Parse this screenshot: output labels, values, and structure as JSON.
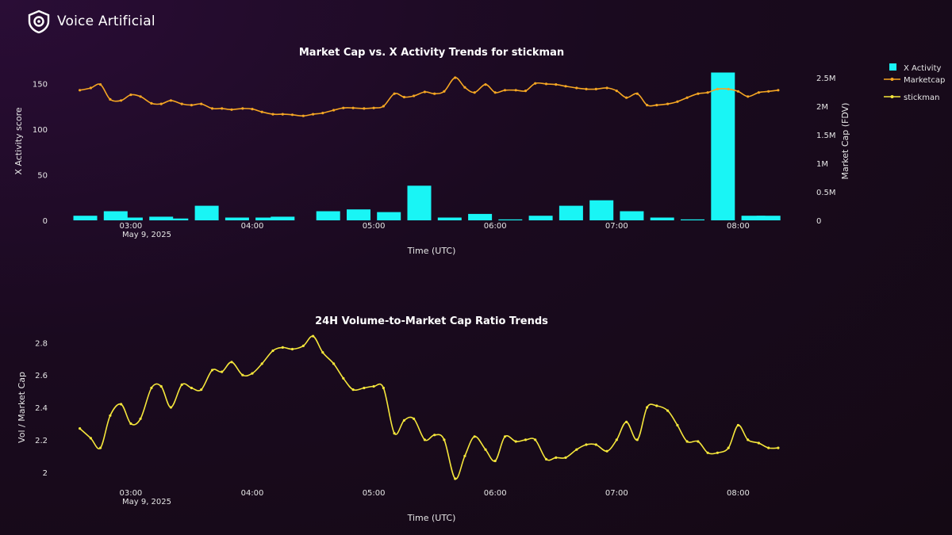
{
  "brand": {
    "name": "Voice Artificial",
    "logo_icon": "voice-artificial-logo-icon"
  },
  "colors": {
    "bar": "#19f5f5",
    "marketcap": "#f5a623",
    "ratio": "#f5e63b",
    "text": "#ffffff"
  },
  "chart_data": [
    {
      "type": "bar+line",
      "title": "Market Cap vs. X Activity Trends for stickman",
      "xlabel": "Time (UTC)",
      "ylabel_left": "X Activity score",
      "ylabel_right": "Market Cap (FDV)",
      "x_range_hours": [
        2.55,
        8.35
      ],
      "ylim_left": [
        0,
        172
      ],
      "ylim_right": [
        0,
        2.75
      ],
      "x_ticks": [
        "03:00",
        "04:00",
        "05:00",
        "06:00",
        "07:00",
        "08:00"
      ],
      "x_tick_sub": "May 9, 2025",
      "y_left_ticks": [
        "0",
        "50",
        "100",
        "150"
      ],
      "y_right_ticks": [
        "0",
        "0.5M",
        "1M",
        "1.5M",
        "2M",
        "2.5M"
      ],
      "legend": [
        "X Activity",
        "Marketcap",
        "stickman"
      ],
      "legend_position": "top-right",
      "bars": {
        "name": "X Activity",
        "x": [
          2.625,
          2.875,
          3.0,
          3.25,
          3.375,
          3.625,
          3.875,
          4.125,
          4.25,
          4.625,
          4.875,
          5.125,
          5.375,
          5.625,
          5.875,
          6.125,
          6.375,
          6.625,
          6.875,
          7.125,
          7.375,
          7.625,
          7.875,
          8.125,
          8.25
        ],
        "y": [
          5,
          10,
          3,
          4,
          2,
          16,
          3,
          3,
          4,
          10,
          12,
          9,
          38,
          3,
          7,
          1,
          5,
          16,
          22,
          10,
          3,
          1,
          162,
          5,
          5
        ]
      },
      "marketcap": {
        "name": "Marketcap",
        "x": [
          2.58,
          2.67,
          2.75,
          2.83,
          2.92,
          3.0,
          3.08,
          3.17,
          3.25,
          3.33,
          3.42,
          3.5,
          3.58,
          3.67,
          3.75,
          3.83,
          3.92,
          4.0,
          4.08,
          4.17,
          4.25,
          4.33,
          4.42,
          4.5,
          4.58,
          4.67,
          4.75,
          4.83,
          4.92,
          5.0,
          5.08,
          5.17,
          5.25,
          5.33,
          5.42,
          5.5,
          5.58,
          5.67,
          5.75,
          5.83,
          5.92,
          6.0,
          6.08,
          6.17,
          6.25,
          6.33,
          6.42,
          6.5,
          6.58,
          6.67,
          6.75,
          6.83,
          6.92,
          7.0,
          7.08,
          7.17,
          7.25,
          7.33,
          7.42,
          7.5,
          7.58,
          7.67,
          7.75,
          7.83,
          7.92,
          8.0,
          8.08,
          8.17,
          8.25,
          8.33
        ],
        "y": [
          2.28,
          2.32,
          2.38,
          2.12,
          2.1,
          2.2,
          2.17,
          2.05,
          2.04,
          2.1,
          2.04,
          2.02,
          2.04,
          1.96,
          1.96,
          1.94,
          1.96,
          1.95,
          1.9,
          1.86,
          1.86,
          1.85,
          1.83,
          1.86,
          1.88,
          1.93,
          1.97,
          1.97,
          1.96,
          1.97,
          2.0,
          2.22,
          2.16,
          2.18,
          2.25,
          2.22,
          2.26,
          2.5,
          2.33,
          2.24,
          2.38,
          2.24,
          2.28,
          2.28,
          2.27,
          2.4,
          2.39,
          2.38,
          2.35,
          2.32,
          2.3,
          2.3,
          2.32,
          2.27,
          2.15,
          2.22,
          2.02,
          2.02,
          2.04,
          2.08,
          2.15,
          2.22,
          2.24,
          2.3,
          2.3,
          2.26,
          2.17,
          2.24,
          2.26,
          2.28
        ]
      }
    },
    {
      "type": "line",
      "title": "24H Volume-to-Market Cap Ratio Trends",
      "xlabel": "Time (UTC)",
      "ylabel": "Vol / Market Cap",
      "x_range_hours": [
        2.55,
        8.35
      ],
      "ylim": [
        1.95,
        2.87
      ],
      "x_ticks": [
        "03:00",
        "04:00",
        "05:00",
        "06:00",
        "07:00",
        "08:00"
      ],
      "x_tick_sub": "May 9, 2025",
      "y_ticks": [
        "2",
        "2.2",
        "2.4",
        "2.6",
        "2.8"
      ],
      "series": [
        {
          "name": "stickman",
          "x": [
            2.58,
            2.67,
            2.75,
            2.83,
            2.92,
            3.0,
            3.08,
            3.17,
            3.25,
            3.33,
            3.42,
            3.5,
            3.58,
            3.67,
            3.75,
            3.83,
            3.92,
            4.0,
            4.08,
            4.17,
            4.25,
            4.33,
            4.42,
            4.5,
            4.58,
            4.67,
            4.75,
            4.83,
            4.92,
            5.0,
            5.08,
            5.17,
            5.25,
            5.33,
            5.42,
            5.5,
            5.58,
            5.67,
            5.75,
            5.83,
            5.92,
            6.0,
            6.08,
            6.17,
            6.25,
            6.33,
            6.42,
            6.5,
            6.58,
            6.67,
            6.75,
            6.83,
            6.92,
            7.0,
            7.08,
            7.17,
            7.25,
            7.33,
            7.42,
            7.5,
            7.58,
            7.67,
            7.75,
            7.83,
            7.92,
            8.0,
            8.08,
            8.17,
            8.25,
            8.33
          ],
          "y": [
            2.27,
            2.21,
            2.15,
            2.35,
            2.42,
            2.3,
            2.33,
            2.52,
            2.53,
            2.4,
            2.54,
            2.52,
            2.51,
            2.63,
            2.62,
            2.68,
            2.6,
            2.61,
            2.67,
            2.75,
            2.77,
            2.76,
            2.78,
            2.84,
            2.74,
            2.67,
            2.58,
            2.51,
            2.52,
            2.53,
            2.52,
            2.24,
            2.32,
            2.33,
            2.2,
            2.23,
            2.2,
            1.96,
            2.1,
            2.22,
            2.14,
            2.07,
            2.22,
            2.19,
            2.2,
            2.2,
            2.08,
            2.09,
            2.09,
            2.14,
            2.17,
            2.17,
            2.13,
            2.2,
            2.31,
            2.2,
            2.4,
            2.41,
            2.38,
            2.29,
            2.19,
            2.19,
            2.12,
            2.12,
            2.15,
            2.29,
            2.2,
            2.18,
            2.15,
            2.15
          ]
        }
      ]
    }
  ]
}
